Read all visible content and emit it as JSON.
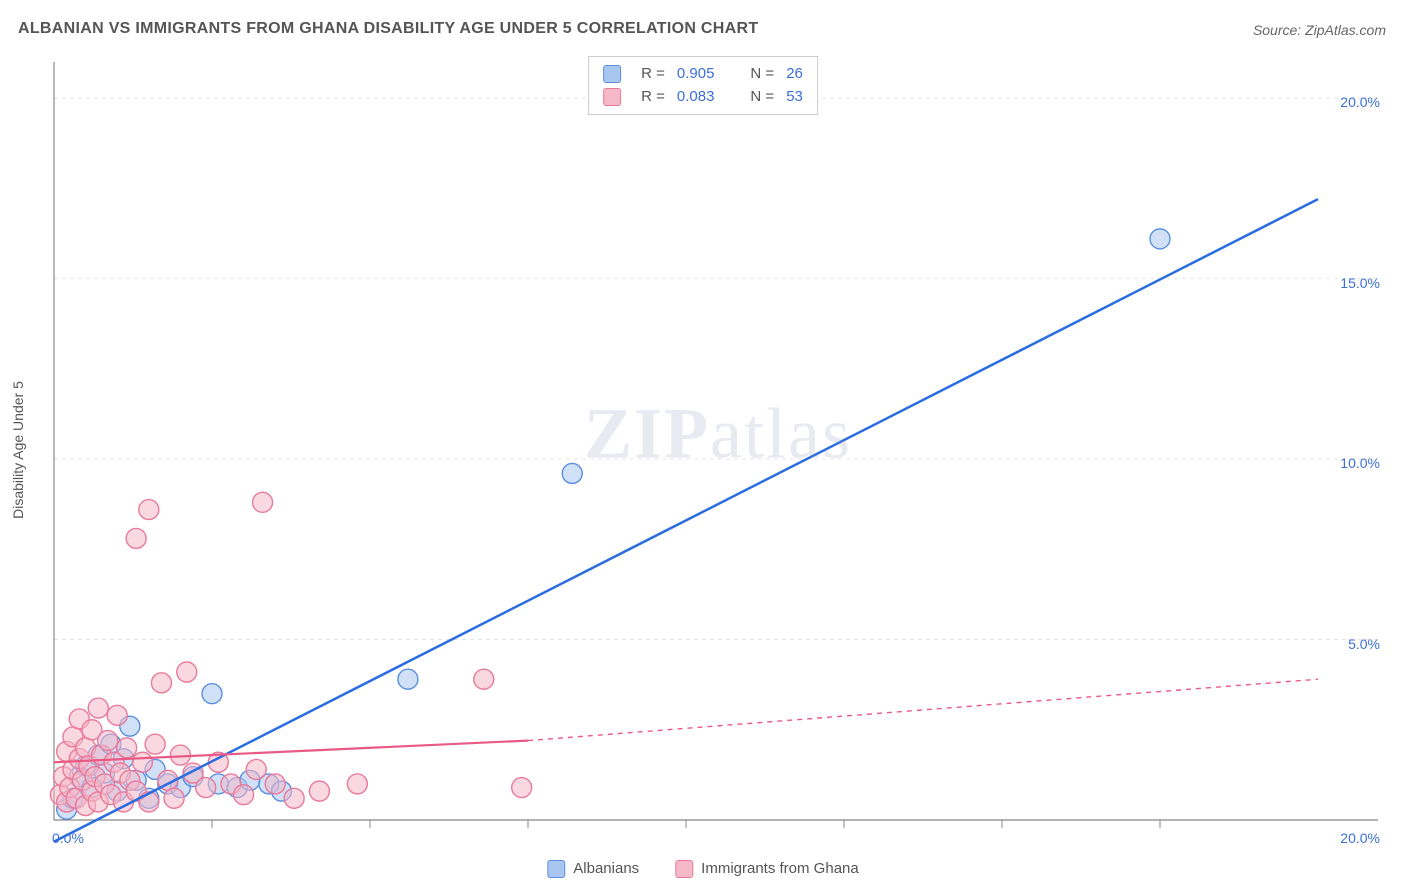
{
  "title": "ALBANIAN VS IMMIGRANTS FROM GHANA DISABILITY AGE UNDER 5 CORRELATION CHART",
  "source": "Source: ZipAtlas.com",
  "ylabel": "Disability Age Under 5",
  "watermark_bold": "ZIP",
  "watermark_rest": "atlas",
  "chart": {
    "type": "scatter-with-regression",
    "xlim": [
      0,
      20
    ],
    "ylim": [
      0,
      21
    ],
    "x_ticks": [
      0,
      20
    ],
    "x_tick_labels": [
      "0.0%",
      "20.0%"
    ],
    "y_ticks": [
      5,
      10,
      15,
      20
    ],
    "y_tick_labels": [
      "5.0%",
      "10.0%",
      "15.0%",
      "20.0%"
    ],
    "x_minor_ticks": [
      2.5,
      5,
      7.5,
      10,
      12.5,
      15,
      17.5
    ],
    "grid_color": "#e5e5e5",
    "axis_color": "#888888",
    "background_color": "#ffffff",
    "tick_label_color": "#3b6fd8",
    "label_fontsize": 14,
    "title_fontsize": 16,
    "marker_radius": 10,
    "marker_opacity": 0.55,
    "series": [
      {
        "name": "Albanians",
        "color_fill": "#a8c6f0",
        "color_stroke": "#5b8fe0",
        "line_color": "#2a6de0",
        "line_width": 2.5,
        "line_dash": "none",
        "R": 0.905,
        "N": 26,
        "regression": {
          "x1": 0,
          "y1": -0.6,
          "x2": 20,
          "y2": 17.2
        },
        "points": [
          [
            0.2,
            0.3
          ],
          [
            0.3,
            0.6
          ],
          [
            0.4,
            1.2
          ],
          [
            0.5,
            1.5
          ],
          [
            0.6,
            0.9
          ],
          [
            0.7,
            1.8
          ],
          [
            0.8,
            1.3
          ],
          [
            0.9,
            2.1
          ],
          [
            1.0,
            0.8
          ],
          [
            1.1,
            1.7
          ],
          [
            1.2,
            2.6
          ],
          [
            1.3,
            1.1
          ],
          [
            1.5,
            0.6
          ],
          [
            1.6,
            1.4
          ],
          [
            1.8,
            1.0
          ],
          [
            2.0,
            0.9
          ],
          [
            2.2,
            1.2
          ],
          [
            2.5,
            3.5
          ],
          [
            2.6,
            1.0
          ],
          [
            2.9,
            0.9
          ],
          [
            3.1,
            1.1
          ],
          [
            3.4,
            1.0
          ],
          [
            3.6,
            0.8
          ],
          [
            5.6,
            3.9
          ],
          [
            8.2,
            9.6
          ],
          [
            17.5,
            16.1
          ]
        ]
      },
      {
        "name": "Immigrants from Ghana",
        "color_fill": "#f5b8c8",
        "color_stroke": "#e87a9a",
        "line_color": "#e85a85",
        "line_width": 2.2,
        "line_dash": "none",
        "line_dash_extend": "5,5",
        "R": 0.083,
        "N": 53,
        "regression": {
          "x1": 0,
          "y1": 1.6,
          "x2": 7.5,
          "y2": 2.2,
          "extend_x2": 20,
          "extend_y2": 3.9
        },
        "points": [
          [
            0.1,
            0.7
          ],
          [
            0.15,
            1.2
          ],
          [
            0.2,
            0.5
          ],
          [
            0.2,
            1.9
          ],
          [
            0.25,
            0.9
          ],
          [
            0.3,
            1.4
          ],
          [
            0.3,
            2.3
          ],
          [
            0.35,
            0.6
          ],
          [
            0.4,
            1.7
          ],
          [
            0.4,
            2.8
          ],
          [
            0.45,
            1.1
          ],
          [
            0.5,
            0.4
          ],
          [
            0.5,
            2.0
          ],
          [
            0.55,
            1.5
          ],
          [
            0.6,
            0.8
          ],
          [
            0.6,
            2.5
          ],
          [
            0.65,
            1.2
          ],
          [
            0.7,
            0.5
          ],
          [
            0.7,
            3.1
          ],
          [
            0.75,
            1.8
          ],
          [
            0.8,
            1.0
          ],
          [
            0.85,
            2.2
          ],
          [
            0.9,
            0.7
          ],
          [
            0.95,
            1.6
          ],
          [
            1.0,
            2.9
          ],
          [
            1.05,
            1.3
          ],
          [
            1.1,
            0.5
          ],
          [
            1.15,
            2.0
          ],
          [
            1.2,
            1.1
          ],
          [
            1.3,
            7.8
          ],
          [
            1.3,
            0.8
          ],
          [
            1.4,
            1.6
          ],
          [
            1.5,
            0.5
          ],
          [
            1.5,
            8.6
          ],
          [
            1.6,
            2.1
          ],
          [
            1.7,
            3.8
          ],
          [
            1.8,
            1.1
          ],
          [
            1.9,
            0.6
          ],
          [
            2.0,
            1.8
          ],
          [
            2.1,
            4.1
          ],
          [
            2.2,
            1.3
          ],
          [
            2.4,
            0.9
          ],
          [
            2.6,
            1.6
          ],
          [
            2.8,
            1.0
          ],
          [
            3.0,
            0.7
          ],
          [
            3.2,
            1.4
          ],
          [
            3.3,
            8.8
          ],
          [
            3.5,
            1.0
          ],
          [
            3.8,
            0.6
          ],
          [
            4.2,
            0.8
          ],
          [
            4.8,
            1.0
          ],
          [
            6.8,
            3.9
          ],
          [
            7.4,
            0.9
          ]
        ]
      }
    ]
  },
  "top_legend": {
    "rows": [
      {
        "swatch_fill": "#a8c6f0",
        "swatch_stroke": "#5b8fe0",
        "r_label": "R =",
        "r_val": "0.905",
        "n_label": "N =",
        "n_val": "26"
      },
      {
        "swatch_fill": "#f5b8c8",
        "swatch_stroke": "#e87a9a",
        "r_label": "R =",
        "r_val": "0.083",
        "n_label": "N =",
        "n_val": "53"
      }
    ]
  },
  "bottom_legend": {
    "items": [
      {
        "swatch_fill": "#a8c6f0",
        "swatch_stroke": "#5b8fe0",
        "label": "Albanians"
      },
      {
        "swatch_fill": "#f5b8c8",
        "swatch_stroke": "#e87a9a",
        "label": "Immigrants from Ghana"
      }
    ]
  }
}
